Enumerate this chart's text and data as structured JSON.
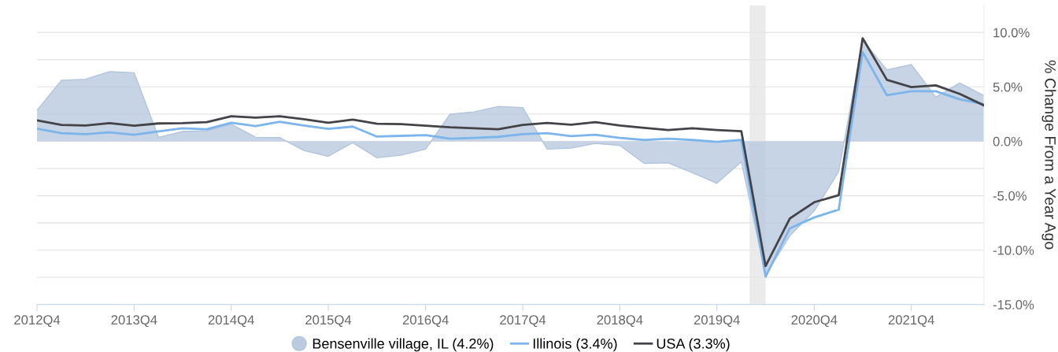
{
  "chart_data": {
    "type": "line",
    "ylabel": "% Change From a Year Ago",
    "x": [
      "2012-10",
      "2013-01",
      "2013-04",
      "2013-07",
      "2013-10",
      "2014-01",
      "2014-04",
      "2014-07",
      "2014-10",
      "2015-01",
      "2015-04",
      "2015-07",
      "2015-10",
      "2016-01",
      "2016-04",
      "2016-07",
      "2016-10",
      "2017-01",
      "2017-04",
      "2017-07",
      "2017-10",
      "2018-01",
      "2018-04",
      "2018-07",
      "2018-10",
      "2019-01",
      "2019-04",
      "2019-07",
      "2019-10",
      "2020-01",
      "2020-04",
      "2020-07",
      "2020-10",
      "2021-01",
      "2021-04",
      "2021-07",
      "2021-10",
      "2022-01",
      "2022-04",
      "2022-07"
    ],
    "series": [
      {
        "name": "Bensenville village, IL (4.2%)",
        "type": "area",
        "color": "#b3c5dc",
        "values": [
          2.85,
          5.6,
          5.7,
          6.4,
          6.3,
          0.36,
          0.9,
          0.97,
          1.57,
          0.36,
          0.34,
          -0.85,
          -1.38,
          -0.12,
          -1.52,
          -1.28,
          -0.72,
          2.49,
          2.7,
          3.2,
          3.1,
          -0.72,
          -0.63,
          -0.19,
          -0.39,
          -2.03,
          -1.98,
          -2.9,
          -3.86,
          -1.88,
          -12.3,
          -8.7,
          -6.4,
          -2.78,
          9.3,
          6.57,
          7.05,
          4.06,
          5.36,
          4.2
        ]
      },
      {
        "name": "Illinois (3.4%)",
        "color": "#7cb5ec",
        "values": [
          1.16,
          0.75,
          0.65,
          0.82,
          0.6,
          0.9,
          1.2,
          1.1,
          1.7,
          1.4,
          1.8,
          1.45,
          1.14,
          1.35,
          0.43,
          0.5,
          0.56,
          0.24,
          0.31,
          0.41,
          0.65,
          0.75,
          0.48,
          0.6,
          0.31,
          0.12,
          0.24,
          0.12,
          -0.05,
          0.12,
          -12.44,
          -8.0,
          -7.0,
          -6.28,
          8.2,
          4.23,
          4.6,
          4.6,
          3.86,
          3.4
        ]
      },
      {
        "name": "USA (3.3%)",
        "color": "#434348",
        "values": [
          1.93,
          1.5,
          1.45,
          1.67,
          1.43,
          1.64,
          1.67,
          1.76,
          2.3,
          2.17,
          2.3,
          2.03,
          1.71,
          2.0,
          1.62,
          1.57,
          1.43,
          1.28,
          1.2,
          1.1,
          1.5,
          1.69,
          1.52,
          1.76,
          1.45,
          1.23,
          1.04,
          1.2,
          1.04,
          0.92,
          -11.47,
          -7.1,
          -5.6,
          -4.95,
          9.47,
          5.65,
          4.98,
          5.14,
          4.35,
          3.3
        ]
      }
    ],
    "xlim": [
      "2012-10",
      "2022-07"
    ],
    "xticks": [
      {
        "value": "2012-10",
        "label": "2012Q4"
      },
      {
        "value": "2013-10",
        "label": "2013Q4"
      },
      {
        "value": "2014-10",
        "label": "2014Q4"
      },
      {
        "value": "2015-10",
        "label": "2015Q4"
      },
      {
        "value": "2016-10",
        "label": "2016Q4"
      },
      {
        "value": "2017-10",
        "label": "2017Q4"
      },
      {
        "value": "2018-10",
        "label": "2018Q4"
      },
      {
        "value": "2019-10",
        "label": "2019Q4"
      },
      {
        "value": "2020-10",
        "label": "2020Q4"
      },
      {
        "value": "2021-10",
        "label": "2021Q4"
      }
    ],
    "ylim": [
      -15,
      12.5
    ],
    "yticks": [
      {
        "value": -15,
        "label": "-15.0%"
      },
      {
        "value": -12.5,
        "label": null
      },
      {
        "value": -10,
        "label": "-10.0%"
      },
      {
        "value": -7.5,
        "label": null
      },
      {
        "value": -5,
        "label": "-5.0%"
      },
      {
        "value": -2.5,
        "label": null
      },
      {
        "value": 0,
        "label": "0.0%"
      },
      {
        "value": 2.5,
        "label": null
      },
      {
        "value": 5,
        "label": "5.0%"
      },
      {
        "value": 7.5,
        "label": null
      },
      {
        "value": 10,
        "label": "10.0%"
      }
    ],
    "bands": [
      {
        "axis": "x",
        "from": "2020-02",
        "to": "2020-04",
        "color": "#ebebeb"
      }
    ],
    "grid": "y",
    "legend": "bottom",
    "marker": "none",
    "line_style": "solid"
  }
}
